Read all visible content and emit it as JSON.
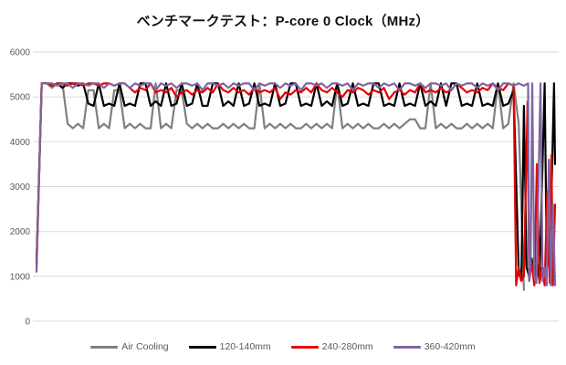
{
  "chart_data": {
    "type": "line",
    "title": "ベンチマークテスト：P-core 0 Clock（MHz）",
    "xlabel": "",
    "ylabel": "",
    "ylim": [
      0,
      6000
    ],
    "yticks": [
      0,
      1000,
      2000,
      3000,
      4000,
      5000,
      6000
    ],
    "x_axis_labels_visible": false,
    "grid": true,
    "grid_color": "#d9d9d9",
    "tick_color": "#595959",
    "legend_position": "bottom",
    "series": [
      {
        "name": "Air Cooling",
        "color": "#7f7f7f",
        "v": [
          1250,
          5300,
          5300,
          5200,
          5300,
          5300,
          4400,
          4300,
          4400,
          4300,
          5150,
          5150,
          4300,
          4400,
          4300,
          5150,
          5150,
          4300,
          4400,
          4300,
          4400,
          4300,
          4300,
          5300,
          4300,
          4400,
          4300,
          5150,
          5150,
          4400,
          4300,
          4400,
          4300,
          4400,
          4300,
          4300,
          4400,
          4300,
          4400,
          4300,
          4400,
          4300,
          4300,
          5300,
          4300,
          4400,
          4300,
          4400,
          4300,
          4400,
          4300,
          4300,
          4400,
          4300,
          4400,
          4300,
          4400,
          4300,
          5300,
          4300,
          4400,
          4300,
          4400,
          4300,
          4400,
          4300,
          4300,
          4400,
          4300,
          4400,
          4300,
          4400,
          4500,
          4500,
          4300,
          4300,
          5300,
          4300,
          4400,
          4300,
          4400,
          4300,
          4300,
          4400,
          4300,
          4400,
          4300,
          4400,
          4300,
          5300,
          4300,
          4400,
          5300,
          4400,
          700
        ],
        "tail_x": [],
        "tail_v": []
      },
      {
        "name": "120-140mm",
        "color": "#000000",
        "v": [
          1300,
          5300,
          5300,
          5250,
          5300,
          5200,
          5300,
          5300,
          5250,
          5300,
          4850,
          4800,
          5300,
          4800,
          4850,
          4800,
          5300,
          4800,
          4850,
          4800,
          5300,
          5300,
          4800,
          4900,
          4800,
          5300,
          4800,
          4850,
          5300,
          4800,
          4850,
          5300,
          4800,
          4800,
          5300,
          5300,
          4800,
          4900,
          4800,
          5300,
          4800,
          4850,
          5300,
          4800,
          4850,
          4800,
          5300,
          4800,
          4850,
          5300,
          5300,
          4800,
          4850,
          4800,
          5300,
          4800,
          4900,
          4800,
          5300,
          4800,
          4850,
          5300,
          4800,
          4850,
          4800,
          5300,
          5300,
          4800,
          4850,
          4800,
          5300,
          4800,
          4850,
          4800,
          5300,
          4800,
          4900,
          4800,
          5300,
          4800,
          5300,
          5300,
          4800,
          4850,
          4800,
          5300,
          4800,
          4850,
          4800,
          5300,
          4800,
          4850,
          5150
        ],
        "tail_x": [
          93,
          93.5,
          94,
          94.5,
          95,
          95.5,
          96,
          96.5,
          97,
          98,
          98.4,
          99,
          99.8,
          100
        ],
        "tail_v": [
          1100,
          900,
          4800,
          1200,
          1000,
          1400,
          900,
          1300,
          900,
          5300,
          1400,
          1200,
          5300,
          3500
        ]
      },
      {
        "name": "240-280mm",
        "color": "#e60000",
        "v": [
          1200,
          5300,
          5300,
          5250,
          5300,
          5300,
          5250,
          5300,
          5300,
          5250,
          5300,
          5300,
          5250,
          5300,
          5300,
          5250,
          5300,
          5300,
          5200,
          5100,
          5200,
          5150,
          5300,
          5100,
          5150,
          5100,
          5200,
          5000,
          5100,
          5150,
          5050,
          5150,
          5100,
          5200,
          5100,
          5300,
          5150,
          5100,
          5200,
          5100,
          5150,
          5050,
          5200,
          5100,
          5150,
          5100,
          5200,
          4950,
          5100,
          5050,
          5150,
          5100,
          5200,
          5100,
          5300,
          5150,
          5100,
          5200,
          5100,
          5000,
          5150,
          5100,
          5200,
          5150,
          5050,
          5150,
          5100,
          5200,
          4950,
          5100,
          5150,
          5050,
          5150,
          5100,
          5300,
          5100,
          5150,
          5100,
          5200,
          5100,
          5150,
          5300,
          5200,
          5100,
          5150,
          5100,
          5200,
          5150,
          5300,
          5200,
          5150,
          5300,
          5250
        ],
        "tail_x": [
          92.5,
          93,
          93.5,
          94,
          94.7,
          95,
          95.5,
          96,
          96.5,
          97,
          97.5,
          98,
          98.5,
          99,
          99.3,
          99.6,
          100
        ],
        "tail_v": [
          800,
          1200,
          900,
          1000,
          4900,
          900,
          1300,
          800,
          3500,
          850,
          1200,
          800,
          2900,
          850,
          3700,
          800,
          2600
        ]
      },
      {
        "name": "360-420mm",
        "color": "#8064a2",
        "v": [
          1100,
          5300,
          5300,
          5300,
          5250,
          5300,
          5300,
          5200,
          5300,
          5300,
          5250,
          5300,
          5300,
          5200,
          5300,
          5250,
          5300,
          5300,
          5200,
          5300,
          5250,
          5300,
          5300,
          5150,
          5300,
          5250,
          5300,
          5200,
          5300,
          5300,
          5250,
          5300,
          5150,
          5300,
          5300,
          5250,
          5300,
          5200,
          5300,
          5250,
          5300,
          5300,
          5150,
          5300,
          5250,
          5300,
          5300,
          5200,
          5300,
          5250,
          5300,
          5150,
          5300,
          5300,
          5250,
          5300,
          5200,
          5300,
          5300,
          5250,
          5300,
          5150,
          5300,
          5250,
          5300,
          5300,
          5200,
          5300,
          5250,
          5300,
          5150,
          5300,
          5300,
          5250,
          5300,
          5200,
          5300,
          5300,
          5250,
          5300,
          5150,
          5300,
          5250,
          5300,
          5300,
          5200,
          5300,
          5250,
          5300,
          5150,
          5300,
          5300,
          5250,
          5300,
          5250
        ],
        "tail_x": [
          94.8,
          95,
          95.3,
          95.6,
          96,
          96.4,
          97.2,
          97.6,
          98,
          98.4,
          98.8,
          99.2,
          99.6,
          100
        ],
        "tail_v": [
          5300,
          900,
          1300,
          5300,
          1000,
          850,
          5300,
          900,
          1200,
          800,
          3600,
          800,
          2600,
          800
        ]
      }
    ]
  }
}
